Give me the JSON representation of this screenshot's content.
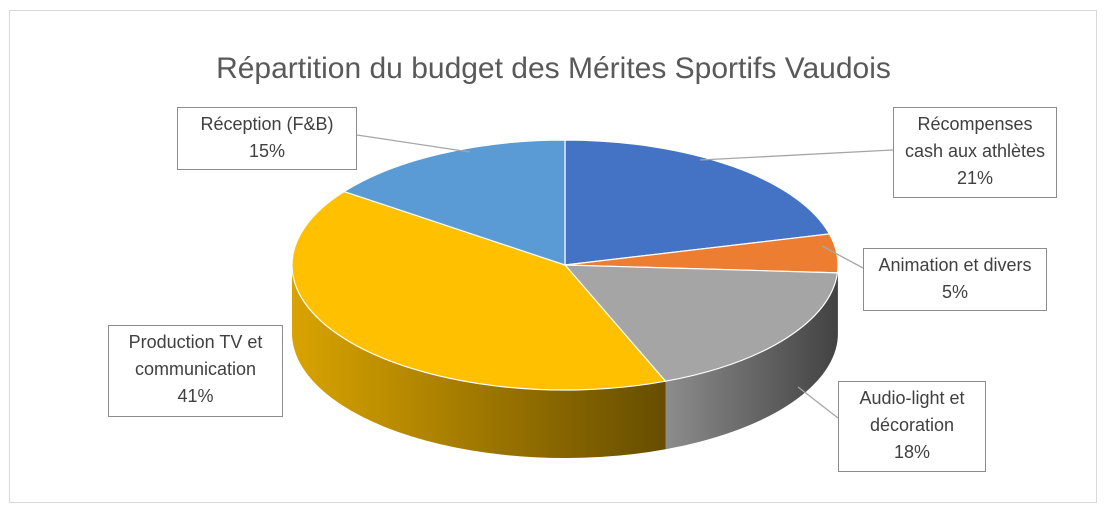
{
  "chart_data": {
    "type": "pie",
    "title": "Répartition du budget des Mérites Sportifs Vaudois",
    "categories": [
      "Récompenses cash aux athlètes",
      "Animation et divers",
      "Audio-light et décoration",
      "Production TV et communication",
      "Réception (F&B)"
    ],
    "values": [
      21,
      5,
      18,
      41,
      15
    ],
    "value_labels": [
      "21%",
      "5%",
      "18%",
      "41%",
      "15%"
    ],
    "colors": [
      "#4472c4",
      "#ed7d31",
      "#a5a5a5",
      "#ffc000",
      "#5b9bd5"
    ]
  }
}
